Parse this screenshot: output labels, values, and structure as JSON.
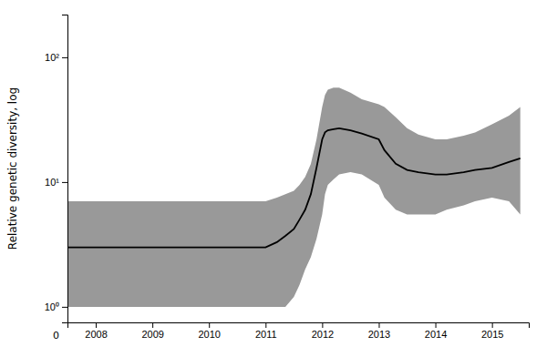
{
  "chart_data": {
    "type": "line",
    "ylabel": "Relative genetic diversity, log",
    "log": "y",
    "grid": false,
    "xlim": [
      2007.5,
      2015.65
    ],
    "xticks": [
      2008,
      2009,
      2010,
      2011,
      2012,
      2013,
      2014,
      2015
    ],
    "ylim": [
      0.75,
      220
    ],
    "yticks": [
      {
        "value": 1,
        "label": "10⁰"
      },
      {
        "value": 10,
        "label": "10¹"
      },
      {
        "value": 100,
        "label": "10²"
      }
    ],
    "annotations": [
      {
        "text": "0"
      }
    ],
    "x": [
      2007.5,
      2007.7,
      2008.0,
      2008.5,
      2009.0,
      2009.5,
      2010.0,
      2010.5,
      2011.0,
      2011.2,
      2011.35,
      2011.5,
      2011.6,
      2011.7,
      2011.8,
      2011.9,
      2012.0,
      2012.05,
      2012.1,
      2012.2,
      2012.3,
      2012.5,
      2012.7,
      2013.0,
      2013.1,
      2013.3,
      2013.5,
      2013.7,
      2014.0,
      2014.2,
      2014.5,
      2014.7,
      2015.0,
      2015.3,
      2015.5
    ],
    "series": [
      {
        "type": "band",
        "color": "#999999",
        "lower": [
          1.0,
          1.0,
          1.0,
          1.0,
          1.0,
          1.0,
          1.0,
          1.0,
          1.0,
          1.0,
          1.0,
          1.2,
          1.5,
          2.0,
          2.5,
          3.5,
          5.5,
          8.0,
          9.5,
          10.5,
          11.5,
          12.0,
          11.5,
          9.5,
          7.5,
          6.0,
          5.5,
          5.5,
          5.5,
          6.0,
          6.5,
          7.0,
          7.5,
          7.0,
          5.5
        ],
        "upper": [
          7.0,
          7.0,
          7.0,
          7.0,
          7.0,
          7.0,
          7.0,
          7.0,
          7.0,
          7.5,
          8.0,
          8.5,
          9.5,
          11.0,
          14.0,
          22.0,
          40.0,
          50.0,
          55.0,
          57.0,
          57.0,
          52.0,
          46.0,
          42.0,
          40.0,
          33.0,
          27.0,
          24.0,
          22.0,
          22.0,
          23.5,
          25.0,
          29.0,
          34.0,
          40.0
        ]
      },
      {
        "type": "line",
        "color": "#000000",
        "values": [
          3.0,
          3.0,
          3.0,
          3.0,
          3.0,
          3.0,
          3.0,
          3.0,
          3.0,
          3.3,
          3.7,
          4.2,
          5.0,
          6.0,
          8.0,
          13.0,
          22.0,
          25.0,
          26.0,
          26.5,
          27.0,
          26.0,
          24.5,
          22.0,
          18.0,
          14.0,
          12.5,
          12.0,
          11.5,
          11.5,
          12.0,
          12.5,
          13.0,
          14.5,
          15.5
        ]
      }
    ]
  }
}
